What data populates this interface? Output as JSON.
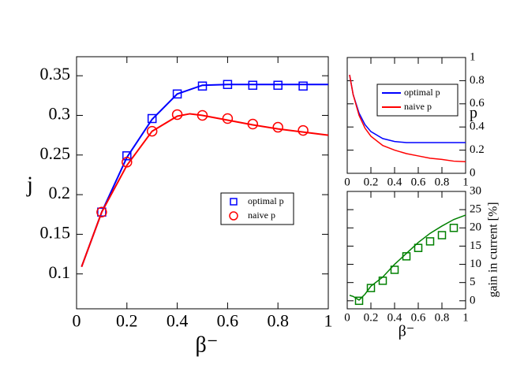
{
  "chart_data": [
    {
      "type": "line",
      "xlabel": "β⁻",
      "ylabel": "j",
      "xlim": [
        0,
        1
      ],
      "ylim": [
        0.056,
        0.374
      ],
      "xticks": [
        0,
        0.2,
        0.4,
        0.6,
        0.8,
        1
      ],
      "yticks": [
        0.1,
        0.15,
        0.2,
        0.25,
        0.3,
        0.35
      ],
      "series": [
        {
          "color": "#0000ff",
          "marker": "line",
          "x": [
            0.02,
            0.1,
            0.2,
            0.3,
            0.4,
            0.5,
            0.6,
            0.7,
            0.8,
            0.9,
            1.0
          ],
          "values": [
            0.109,
            0.178,
            0.247,
            0.295,
            0.327,
            0.338,
            0.339,
            0.339,
            0.339,
            0.339,
            0.339
          ]
        },
        {
          "color": "#ff0000",
          "marker": "line",
          "x": [
            0.02,
            0.1,
            0.2,
            0.3,
            0.4,
            0.45,
            0.5,
            0.6,
            0.7,
            0.8,
            0.9,
            1.0
          ],
          "values": [
            0.109,
            0.178,
            0.237,
            0.28,
            0.299,
            0.302,
            0.3,
            0.294,
            0.288,
            0.283,
            0.279,
            0.275
          ]
        },
        {
          "name": "optimal p",
          "color": "#0000ff",
          "marker": "square",
          "x": [
            0.1,
            0.2,
            0.3,
            0.4,
            0.5,
            0.6,
            0.7,
            0.8,
            0.9
          ],
          "values": [
            0.178,
            0.249,
            0.296,
            0.327,
            0.337,
            0.339,
            0.338,
            0.338,
            0.337
          ]
        },
        {
          "name": "naive p",
          "color": "#ff0000",
          "marker": "circle",
          "x": [
            0.1,
            0.2,
            0.3,
            0.4,
            0.5,
            0.6,
            0.7,
            0.8,
            0.9
          ],
          "values": [
            0.178,
            0.241,
            0.28,
            0.301,
            0.3,
            0.296,
            0.289,
            0.285,
            0.281
          ]
        }
      ]
    },
    {
      "type": "line",
      "ylabel": "p",
      "xlim": [
        0,
        1
      ],
      "ylim": [
        0,
        1
      ],
      "xticks": [
        0,
        0.2,
        0.4,
        0.6,
        0.8,
        1
      ],
      "yticks": [
        0,
        0.2,
        0.4,
        0.6,
        0.8,
        1
      ],
      "series": [
        {
          "name": "optimal p",
          "color": "#0000ff",
          "marker": "line",
          "x": [
            0.02,
            0.05,
            0.1,
            0.15,
            0.2,
            0.3,
            0.4,
            0.5,
            1.0
          ],
          "values": [
            0.85,
            0.68,
            0.52,
            0.42,
            0.36,
            0.3,
            0.275,
            0.265,
            0.265
          ]
        },
        {
          "name": "naive p",
          "color": "#ff0000",
          "marker": "line",
          "x": [
            0.02,
            0.05,
            0.1,
            0.15,
            0.2,
            0.3,
            0.4,
            0.5,
            0.6,
            0.7,
            0.8,
            0.9,
            1.0
          ],
          "values": [
            0.85,
            0.68,
            0.5,
            0.39,
            0.32,
            0.24,
            0.2,
            0.17,
            0.15,
            0.13,
            0.12,
            0.105,
            0.1
          ]
        }
      ]
    },
    {
      "type": "line",
      "xlabel": "β⁻",
      "ylabel": "gain  in current [%]",
      "xlim": [
        0,
        1
      ],
      "ylim": [
        -2.2,
        30
      ],
      "xticks": [
        0,
        0.2,
        0.4,
        0.6,
        0.8,
        1
      ],
      "yticks": [
        0,
        5,
        10,
        15,
        20,
        25,
        30
      ],
      "series": [
        {
          "color": "#008000",
          "marker": "line",
          "x": [
            0.02,
            0.05,
            0.1,
            0.15,
            0.2,
            0.3,
            0.4,
            0.5,
            0.6,
            0.7,
            0.8,
            0.9,
            1.0
          ],
          "values": [
            1.5,
            1.2,
            0.2,
            1.8,
            4,
            6.5,
            10,
            13,
            16,
            18.5,
            20.5,
            22.3,
            23.5
          ]
        },
        {
          "color": "#008000",
          "marker": "square",
          "x": [
            0.1,
            0.2,
            0.3,
            0.4,
            0.5,
            0.6,
            0.7,
            0.8,
            0.9
          ],
          "values": [
            0,
            3.5,
            5.5,
            8.5,
            12.2,
            14.5,
            16.3,
            18,
            20
          ]
        }
      ]
    }
  ]
}
